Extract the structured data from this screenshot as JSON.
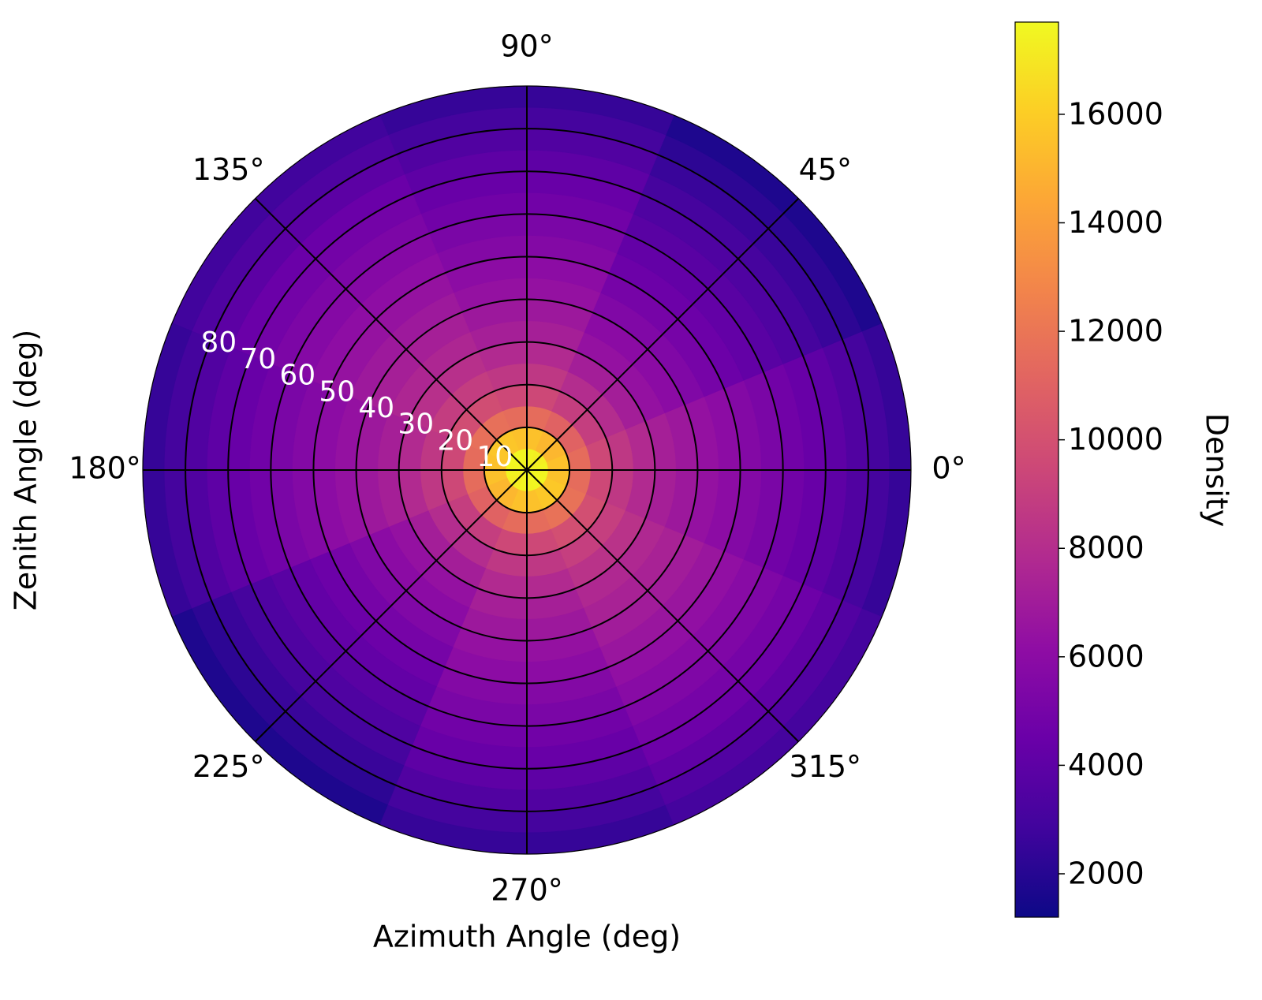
{
  "chart_data": {
    "type": "polar_heatmap",
    "xlabel": "Azimuth Angle (deg)",
    "ylabel": "Zenith Angle (deg)",
    "colorbar_label": "Density",
    "colormap": "plasma",
    "clim": [
      1200,
      17700
    ],
    "cticks": [
      2000,
      4000,
      6000,
      8000,
      10000,
      12000,
      14000,
      16000
    ],
    "rlim": [
      0,
      90
    ],
    "rticks": [
      10,
      20,
      30,
      40,
      50,
      60,
      70,
      80
    ],
    "thetaticks": [
      {
        "value": 0,
        "label": "0°"
      },
      {
        "value": 45,
        "label": "45°"
      },
      {
        "value": 90,
        "label": "90°"
      },
      {
        "value": 135,
        "label": "135°"
      },
      {
        "value": 180,
        "label": "180°"
      },
      {
        "value": 225,
        "label": "225°"
      },
      {
        "value": 270,
        "label": "270°"
      },
      {
        "value": 315,
        "label": "315°"
      }
    ],
    "grid": true,
    "zenith_edges": [
      0,
      5,
      10,
      15,
      20,
      25,
      30,
      35,
      40,
      45,
      50,
      55,
      60,
      65,
      70,
      75,
      80,
      85,
      90
    ],
    "azimuth_edges": [
      -22.5,
      22.5,
      67.5,
      112.5,
      157.5,
      202.5,
      247.5,
      292.5,
      337.5
    ],
    "density": [
      [
        17500,
        17300,
        17500,
        17600,
        17500,
        17300,
        17500,
        17600
      ],
      [
        15500,
        15100,
        15500,
        15700,
        15500,
        15100,
        15500,
        15800
      ],
      [
        11500,
        11000,
        11500,
        11700,
        11500,
        11000,
        11500,
        11800
      ],
      [
        9500,
        8950,
        9500,
        9800,
        9500,
        8950,
        9500,
        9900
      ],
      [
        8600,
        7950,
        8600,
        8900,
        8600,
        7950,
        8600,
        9000
      ],
      [
        7800,
        7100,
        7800,
        8150,
        7800,
        7100,
        7800,
        8300
      ],
      [
        7200,
        6400,
        7200,
        7600,
        7200,
        6400,
        7200,
        7700
      ],
      [
        6800,
        5950,
        6800,
        7200,
        6800,
        5950,
        6800,
        7350
      ],
      [
        6400,
        5500,
        6400,
        6850,
        6400,
        5500,
        6400,
        7000
      ],
      [
        6000,
        5050,
        6000,
        6450,
        6000,
        5050,
        6000,
        6650
      ],
      [
        5600,
        4600,
        5600,
        6100,
        5600,
        4600,
        5600,
        6250
      ],
      [
        5200,
        4200,
        5200,
        5700,
        5200,
        4200,
        5200,
        5850
      ],
      [
        4800,
        3800,
        4800,
        5300,
        4800,
        3800,
        4800,
        5450
      ],
      [
        4400,
        3400,
        4400,
        4900,
        4400,
        3400,
        4400,
        5050
      ],
      [
        4000,
        3050,
        4000,
        4500,
        4000,
        3050,
        4000,
        4650
      ],
      [
        3500,
        2600,
        3500,
        3950,
        3500,
        2600,
        3500,
        4100
      ],
      [
        3000,
        2200,
        3000,
        3400,
        3000,
        2200,
        3000,
        3550
      ],
      [
        2500,
        1750,
        2500,
        2850,
        2500,
        1750,
        2500,
        3000
      ]
    ]
  }
}
